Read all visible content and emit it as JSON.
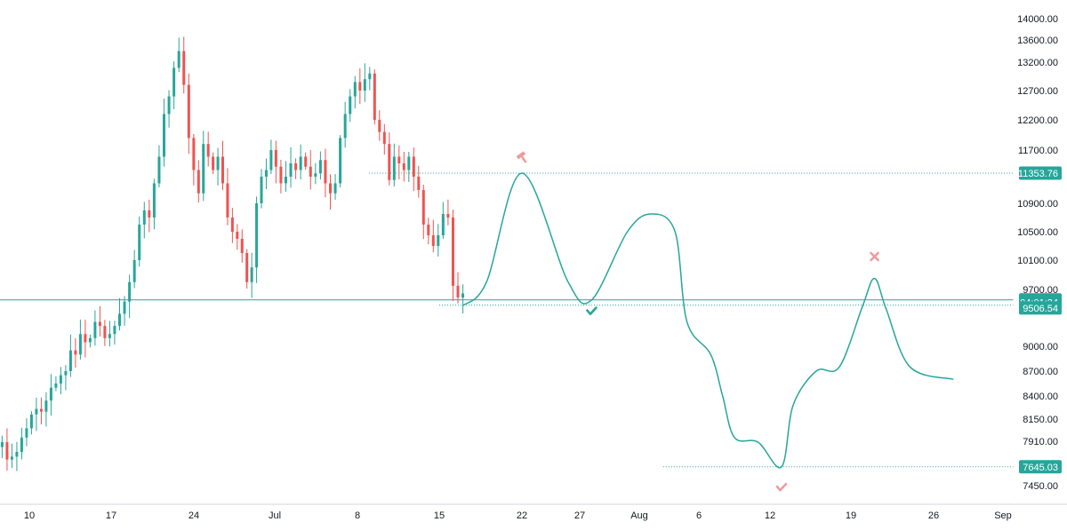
{
  "chart_data": {
    "type": "candlestick",
    "symbol_price_scale": "right",
    "colors": {
      "up": "#26a69a",
      "down": "#ef5350",
      "projection": "#26a69a",
      "level_line": "#26a69a",
      "marker_hammer": "#ef9a9a",
      "marker_check_green": "#26a69a",
      "marker_check_red": "#ef9a9a",
      "marker_cross": "#ef9a9a",
      "axis_text": "#131722",
      "tag_bg": "#26a69a",
      "tag_text": "#ffffff"
    },
    "x_axis": {
      "type": "date",
      "range": [
        "2019-06-06",
        "2019-09-05"
      ],
      "tick_labels": [
        {
          "label": "10",
          "date": "2019-06-10"
        },
        {
          "label": "17",
          "date": "2019-06-17"
        },
        {
          "label": "24",
          "date": "2019-06-24"
        },
        {
          "label": "Jul",
          "date": "2019-07-01"
        },
        {
          "label": "8",
          "date": "2019-07-08"
        },
        {
          "label": "15",
          "date": "2019-07-15"
        },
        {
          "label": "22",
          "date": "2019-07-22"
        },
        {
          "label": "27",
          "date": "2019-07-27"
        },
        {
          "label": "Aug",
          "date": "2019-08-01"
        },
        {
          "label": "6",
          "date": "2019-08-06"
        },
        {
          "label": "12",
          "date": "2019-08-12"
        },
        {
          "label": "19",
          "date": "2019-08-19"
        },
        {
          "label": "26",
          "date": "2019-08-26"
        },
        {
          "label": "Sep",
          "date": "2019-09-02"
        }
      ]
    },
    "y_axis": {
      "scale": "log",
      "range": [
        7300,
        14200
      ],
      "tick_labels": [
        "14000.00",
        "13600.00",
        "13200.00",
        "12700.00",
        "12200.00",
        "11700.00",
        "10900.00",
        "10500.00",
        "10100.00",
        "9700.00",
        "9000.00",
        "8700.00",
        "8400.00",
        "8150.00",
        "7910.00",
        "7450.00"
      ]
    },
    "price_tags": [
      {
        "label": "11353.76",
        "value": 11353.76
      },
      {
        "label": "9571.38",
        "value": 9571.38
      },
      {
        "label": "04:01:34",
        "value": 9540
      },
      {
        "label": "9506.54",
        "value": 9472
      },
      {
        "label": "7645.03",
        "value": 7645.03
      }
    ],
    "horizontal_lines": [
      {
        "value": 11353.76,
        "style": "dotted",
        "from": "2019-07-09",
        "to": "2019-09-05"
      },
      {
        "value": 9571.38,
        "style": "solid",
        "from": "2019-06-06",
        "to": "2019-09-05"
      },
      {
        "value": 9506.54,
        "style": "dotted",
        "from": "2019-07-15",
        "to": "2019-09-05"
      },
      {
        "value": 7645.03,
        "style": "dotted",
        "from": "2019-08-03",
        "to": "2019-09-05"
      }
    ],
    "candles_start_date": "2019-06-06",
    "candles_end_date": "2019-07-17",
    "candles_close": [
      8250,
      8150,
      8000,
      7850,
      7900,
      7720,
      7750,
      7800,
      7950,
      8050,
      8200,
      8260,
      8230,
      8350,
      8500,
      8550,
      8650,
      8700,
      8950,
      8900,
      9150,
      9050,
      9100,
      9300,
      9250,
      9100,
      9150,
      9250,
      9400,
      9550,
      9800,
      10100,
      10600,
      10800,
      10700,
      11200,
      11600,
      12300,
      12600,
      13100,
      13400,
      12800,
      11900,
      11400,
      11050,
      11800,
      11600,
      11400,
      11600,
      11200,
      10700,
      10500,
      10400,
      10200,
      9800,
      10000,
      10900,
      11300,
      11400,
      11700,
      11450,
      11200,
      11300,
      11500,
      11400,
      11600,
      11450,
      11300,
      11350,
      11550,
      11200,
      11050,
      11200,
      11900,
      12300,
      12600,
      12850,
      12700,
      12900,
      13000,
      12200,
      12000,
      11800,
      11250,
      11600,
      11500,
      11400,
      11600,
      11300,
      11100,
      10600,
      10450,
      10300,
      10450,
      10750,
      10700,
      9750,
      9600,
      9650
    ],
    "projection": [
      {
        "date": "2019-07-17",
        "value": 9500
      },
      {
        "date": "2019-07-19",
        "value": 9800
      },
      {
        "date": "2019-07-22",
        "value": 11353.76
      },
      {
        "date": "2019-07-26",
        "value": 9800
      },
      {
        "date": "2019-07-28",
        "value": 9571.38
      },
      {
        "date": "2019-07-31",
        "value": 10500
      },
      {
        "date": "2019-08-02",
        "value": 10750
      },
      {
        "date": "2019-08-04",
        "value": 10500
      },
      {
        "date": "2019-08-05",
        "value": 9300
      },
      {
        "date": "2019-08-07",
        "value": 8900
      },
      {
        "date": "2019-08-08",
        "value": 8400
      },
      {
        "date": "2019-08-09",
        "value": 7950
      },
      {
        "date": "2019-08-11",
        "value": 7900
      },
      {
        "date": "2019-08-13",
        "value": 7645.03
      },
      {
        "date": "2019-08-14",
        "value": 8300
      },
      {
        "date": "2019-08-16",
        "value": 8700
      },
      {
        "date": "2019-08-18",
        "value": 8750
      },
      {
        "date": "2019-08-20",
        "value": 9500
      },
      {
        "date": "2019-08-21",
        "value": 9850
      },
      {
        "date": "2019-08-22",
        "value": 9450
      },
      {
        "date": "2019-08-24",
        "value": 8750
      },
      {
        "date": "2019-08-28",
        "value": 8600
      }
    ],
    "markers": [
      {
        "kind": "hammer",
        "date": "2019-07-22",
        "value": 11600
      },
      {
        "kind": "check-green",
        "date": "2019-07-28",
        "value": 9430
      },
      {
        "kind": "check-red",
        "date": "2019-08-13",
        "value": 7430
      },
      {
        "kind": "cross",
        "date": "2019-08-21",
        "value": 10150
      }
    ],
    "grid": false,
    "legend": "none"
  }
}
